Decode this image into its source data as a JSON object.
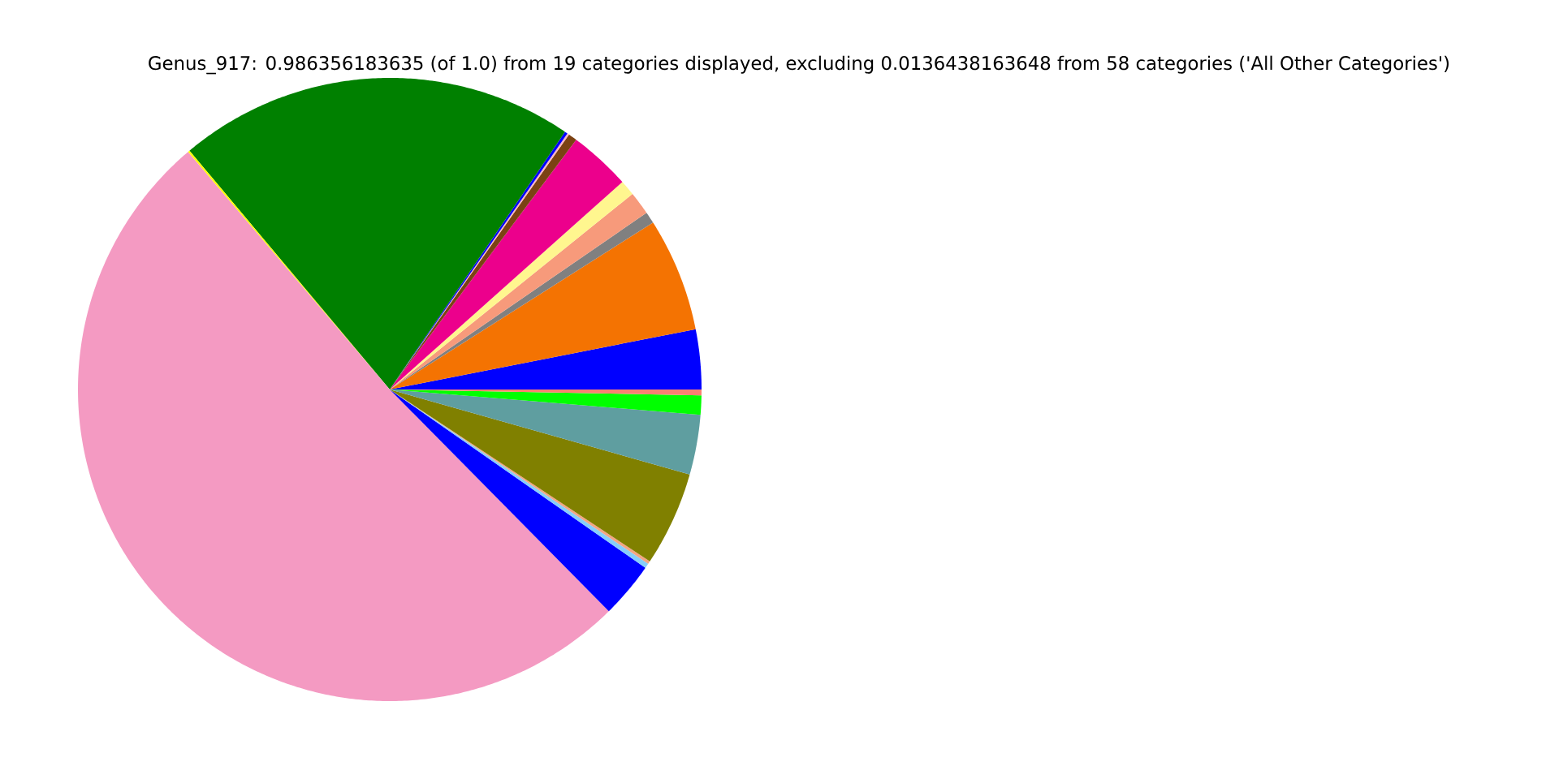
{
  "chart_data": {
    "type": "pie",
    "title": "Genus_917: 0.986356183635 (of 1.0) from 19 categories displayed, excluding 0.0136438163648 from 58 categories ('All Other Categories')",
    "categories": [
      null,
      null,
      null,
      null,
      null,
      null,
      null,
      null,
      null,
      null,
      null,
      null,
      null,
      null,
      null,
      null,
      null,
      null,
      null
    ],
    "values": [
      3.1,
      5.9,
      0.6,
      1.2,
      0.8,
      3.2,
      0.45,
      0.1,
      0.15,
      20.6,
      0.1,
      51.2,
      2.9,
      0.25,
      0.15,
      4.9,
      3.1,
      1.0,
      0.3
    ],
    "colors": [
      "#0000ff",
      "#f47302",
      "#808080",
      "#f79a7b",
      "#fff68f",
      "#ec008c",
      "#7b4213",
      "#ffb6c1",
      "#0000ff",
      "#008000",
      "#ffff00",
      "#f49ac2",
      "#0000ff",
      "#87cefa",
      "#f4a582",
      "#808000",
      "#5f9ea0",
      "#00ff00",
      "#fa8072"
    ]
  }
}
